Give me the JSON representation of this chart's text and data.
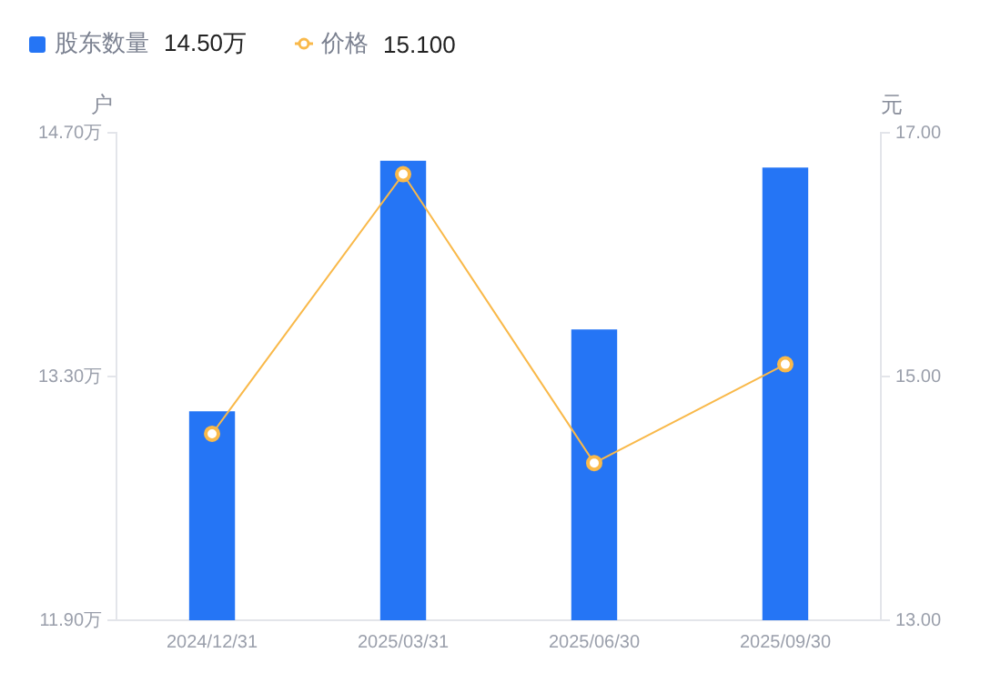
{
  "chart_data": {
    "type": "bar",
    "categories": [
      "2024/12/31",
      "2025/03/31",
      "2025/06/30",
      "2025/09/30"
    ],
    "series": [
      {
        "name": "股东数量 14.50万",
        "color": "#2575f5",
        "values": [
          13.1,
          14.54,
          13.57,
          14.5
        ]
      },
      {
        "name": "价格 15.100",
        "type": "line",
        "axis": "y2",
        "color": "#f9b94a",
        "marker": "circle",
        "values": [
          14.53,
          16.66,
          14.29,
          15.1
        ]
      }
    ],
    "ylabel": "户",
    "y2label": "元",
    "ylim": [
      11.9,
      14.7
    ],
    "yticks": [
      {
        "value": 11.9,
        "label": "11.90万"
      },
      {
        "value": 13.3,
        "label": "13.30万"
      },
      {
        "value": 14.7,
        "label": "14.70万"
      }
    ],
    "y2lim": [
      13,
      17
    ],
    "y2ticks": [
      {
        "value": 13,
        "label": "13.00"
      },
      {
        "value": 15,
        "label": "15.00"
      },
      {
        "value": 17,
        "label": "17.00"
      }
    ],
    "legend": "top left",
    "grid": false
  }
}
